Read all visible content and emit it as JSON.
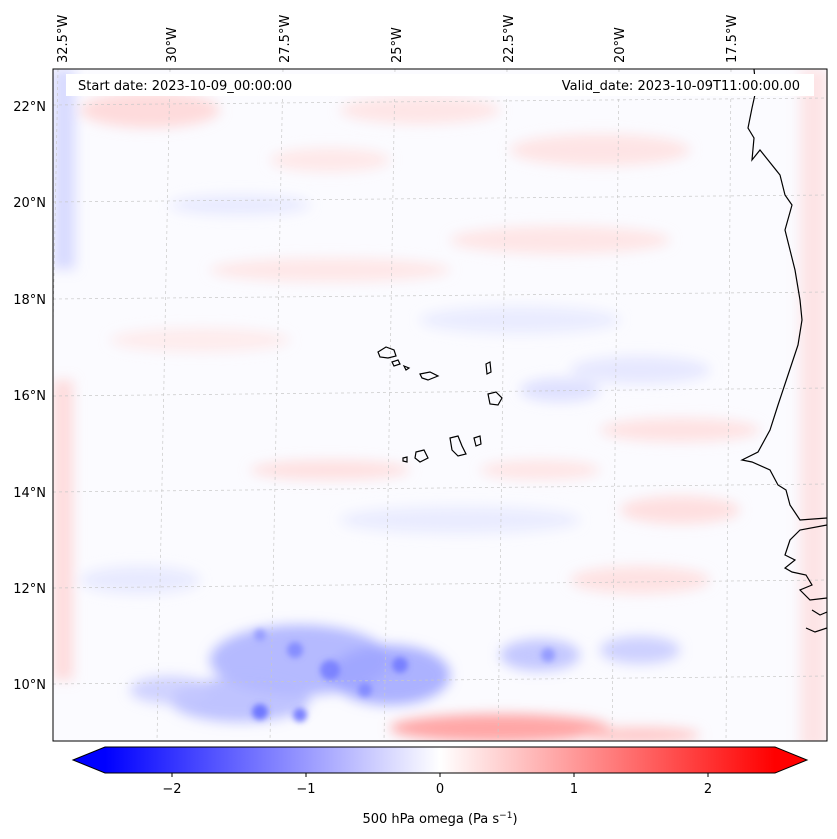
{
  "map": {
    "start_label": "Start date: 2023-10-09_00:00:00",
    "valid_label": "Valid_date: 2023-10-09T11:00:00.00",
    "lon_labels": [
      "32.5°W",
      "30°W",
      "27.5°W",
      "25°W",
      "22.5°W",
      "20°W",
      "17.5°W"
    ],
    "lat_labels": [
      "22°N",
      "20°N",
      "18°N",
      "16°N",
      "14°N",
      "12°N",
      "10°N"
    ],
    "region": "Cape Verde Islands and West African coast",
    "lon_range": [
      -32.5,
      -15.7
    ],
    "lat_range": [
      8.8,
      22.7
    ]
  },
  "colorbar": {
    "label": "500 hPa omega (Pa s",
    "label_exponent": "−1",
    "label_close": ")",
    "ticks": [
      "−2",
      "−1",
      "0",
      "1",
      "2"
    ],
    "range": [
      -2.7,
      2.7
    ],
    "colors": {
      "min": "#0000ff",
      "mid": "#ffffff",
      "max": "#ff0000"
    }
  }
}
